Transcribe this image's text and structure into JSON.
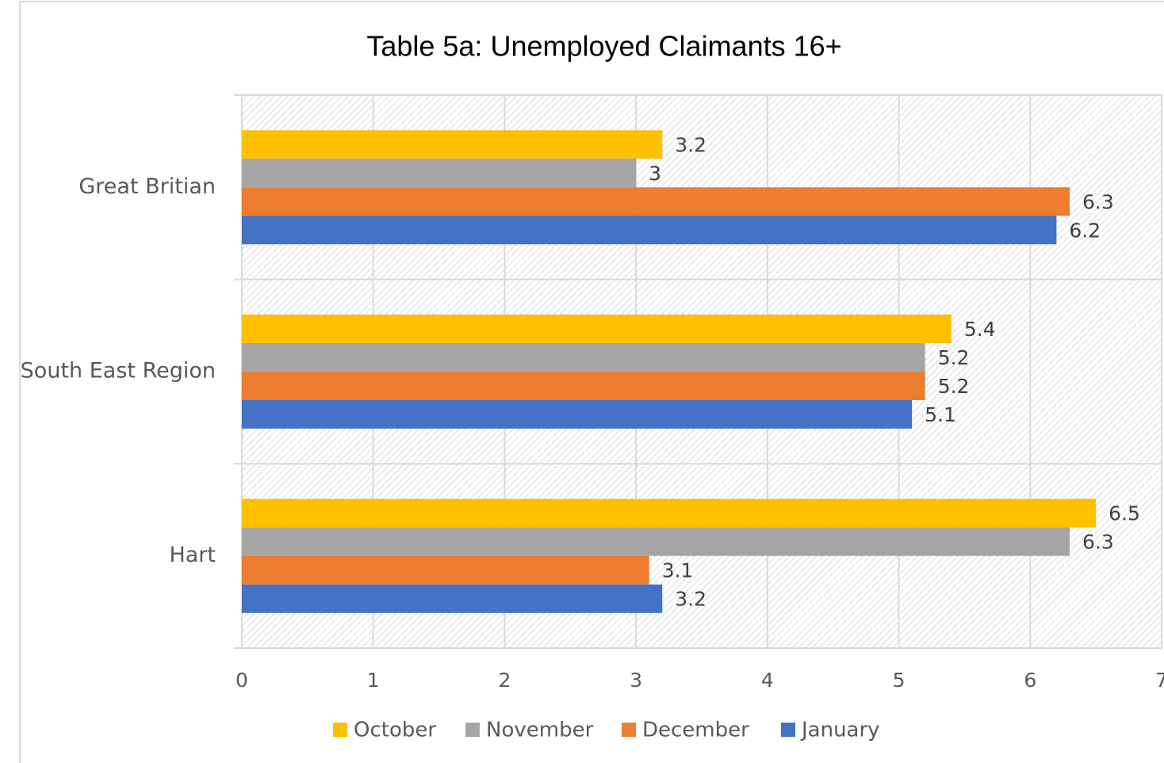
{
  "chart_data": {
    "type": "barh",
    "title": "Table 5a: Unemployed Claimants 16+",
    "categories": [
      "Great Britian",
      "South East Region",
      "Hart"
    ],
    "series": [
      {
        "name": "October",
        "color": "#FFC000",
        "values": [
          3.2,
          5.4,
          6.5
        ]
      },
      {
        "name": "November",
        "color": "#A5A5A5",
        "values": [
          3,
          5.2,
          6.3
        ]
      },
      {
        "name": "December",
        "color": "#ED7D31",
        "values": [
          6.3,
          5.2,
          3.1
        ]
      },
      {
        "name": "January",
        "color": "#4472C4",
        "values": [
          6.2,
          5.1,
          3.2
        ]
      }
    ],
    "xlim": [
      0,
      7
    ],
    "xticks": [
      0,
      1,
      2,
      3,
      4,
      5,
      6,
      7
    ],
    "grid": true,
    "legend": "bottom"
  }
}
